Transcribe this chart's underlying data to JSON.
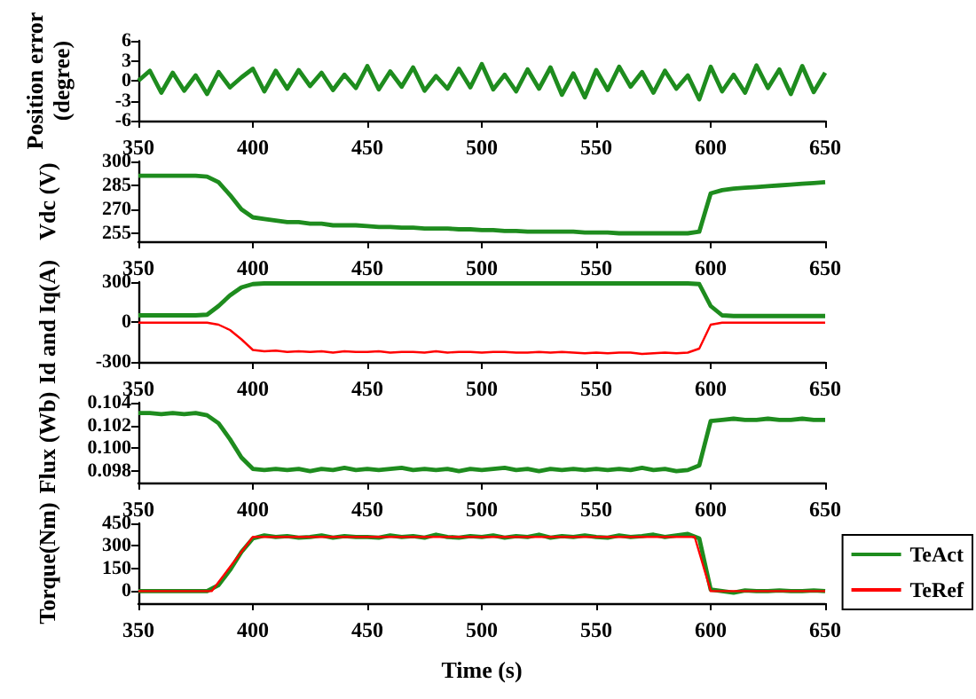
{
  "chart_data": [
    {
      "type": "line",
      "ylabel": "Position error (degree)",
      "xlim": [
        350,
        650
      ],
      "xticks": [
        350,
        400,
        450,
        500,
        550,
        600,
        650
      ],
      "ylim": [
        -6,
        6
      ],
      "yticks": [
        -6,
        -3,
        0,
        3,
        6
      ],
      "x": [
        350,
        355,
        360,
        365,
        370,
        375,
        380,
        385,
        390,
        395,
        400,
        405,
        410,
        415,
        420,
        425,
        430,
        435,
        440,
        445,
        450,
        455,
        460,
        465,
        470,
        475,
        480,
        485,
        490,
        495,
        500,
        505,
        510,
        515,
        520,
        525,
        530,
        535,
        540,
        545,
        550,
        555,
        560,
        565,
        570,
        575,
        580,
        585,
        590,
        595,
        600,
        605,
        610,
        615,
        620,
        625,
        630,
        635,
        640,
        645,
        650
      ],
      "series": [
        {
          "color": "#1e8c1e",
          "values": [
            0,
            1.5,
            -1.8,
            1.2,
            -1.5,
            0.8,
            -2,
            1.3,
            -1,
            0.5,
            1.8,
            -1.6,
            1.5,
            -1.2,
            1.6,
            -0.8,
            1.2,
            -1.4,
            0.9,
            -1.1,
            2.2,
            -1.3,
            1.4,
            -0.9,
            2,
            -1.5,
            0.7,
            -1.2,
            1.8,
            -1,
            2.5,
            -1.3,
            0.9,
            -1.6,
            1.7,
            -1.2,
            2,
            -2.1,
            1.1,
            -2.5,
            1.6,
            -1.4,
            2.1,
            -0.9,
            1.3,
            -1.8,
            1.5,
            -1.2,
            0.8,
            -2.8,
            2.1,
            -1.6,
            0.9,
            -1.8,
            2.3,
            -1.1,
            1.7,
            -2,
            2.2,
            -1.7,
            1.2
          ]
        }
      ]
    },
    {
      "type": "line",
      "ylabel": "Vdc (V)",
      "xlim": [
        350,
        650
      ],
      "xticks": [
        350,
        400,
        450,
        500,
        550,
        600,
        650
      ],
      "ylim": [
        250,
        300
      ],
      "yticks": [
        255,
        270,
        285,
        300
      ],
      "x": [
        350,
        355,
        360,
        365,
        370,
        375,
        380,
        385,
        390,
        395,
        400,
        405,
        410,
        415,
        420,
        425,
        430,
        435,
        440,
        445,
        450,
        455,
        460,
        465,
        470,
        475,
        480,
        485,
        490,
        495,
        500,
        505,
        510,
        515,
        520,
        525,
        530,
        535,
        540,
        545,
        550,
        555,
        560,
        565,
        570,
        575,
        580,
        585,
        590,
        595,
        600,
        605,
        610,
        615,
        620,
        625,
        630,
        635,
        640,
        645,
        650
      ],
      "series": [
        {
          "color": "#1e8c1e",
          "values": [
            291,
            291,
            291,
            291,
            291,
            291,
            290.5,
            287,
            279,
            270,
            265,
            264,
            263,
            262,
            262,
            261,
            261,
            260,
            260,
            260,
            259.5,
            259,
            259,
            258.5,
            258.5,
            258,
            258,
            258,
            257.5,
            257.5,
            257,
            257,
            256.5,
            256.5,
            256,
            256,
            256,
            256,
            256,
            255.5,
            255.5,
            255.5,
            255,
            255,
            255,
            255,
            255,
            255,
            255,
            256,
            280,
            282,
            283,
            283.5,
            284,
            284.5,
            285,
            285.5,
            286,
            286.5,
            287
          ]
        }
      ]
    },
    {
      "type": "line",
      "ylabel": "Id and Iq(A)",
      "xlim": [
        350,
        650
      ],
      "xticks": [
        350,
        400,
        450,
        500,
        550,
        600,
        650
      ],
      "ylim": [
        -300,
        300
      ],
      "yticks": [
        -300,
        0,
        300
      ],
      "x": [
        350,
        355,
        360,
        365,
        370,
        375,
        380,
        385,
        390,
        395,
        400,
        405,
        410,
        415,
        420,
        425,
        430,
        435,
        440,
        445,
        450,
        455,
        460,
        465,
        470,
        475,
        480,
        485,
        490,
        495,
        500,
        505,
        510,
        515,
        520,
        525,
        530,
        535,
        540,
        545,
        550,
        555,
        560,
        565,
        570,
        575,
        580,
        585,
        590,
        595,
        600,
        605,
        610,
        615,
        620,
        625,
        630,
        635,
        640,
        645,
        650
      ],
      "series": [
        {
          "color": "#1e8c1e",
          "values": [
            50,
            50,
            50,
            50,
            50,
            50,
            55,
            120,
            200,
            260,
            285,
            290,
            290,
            290,
            290,
            290,
            290,
            290,
            290,
            290,
            290,
            290,
            290,
            290,
            290,
            290,
            290,
            290,
            290,
            290,
            290,
            290,
            290,
            290,
            290,
            290,
            290,
            290,
            290,
            290,
            290,
            290,
            290,
            290,
            290,
            290,
            290,
            290,
            290,
            285,
            120,
            50,
            45,
            45,
            45,
            45,
            45,
            45,
            45,
            45,
            45
          ]
        },
        {
          "color": "#ff0000",
          "values": [
            -5,
            -5,
            -5,
            -5,
            -5,
            -5,
            -5,
            -20,
            -60,
            -130,
            -210,
            -220,
            -215,
            -225,
            -220,
            -225,
            -220,
            -230,
            -220,
            -225,
            -225,
            -220,
            -230,
            -225,
            -225,
            -230,
            -220,
            -230,
            -225,
            -225,
            -230,
            -225,
            -225,
            -230,
            -230,
            -225,
            -230,
            -225,
            -230,
            -235,
            -230,
            -235,
            -230,
            -230,
            -240,
            -235,
            -230,
            -235,
            -230,
            -200,
            -20,
            -5,
            -5,
            -5,
            -5,
            -5,
            -5,
            -5,
            -5,
            -5,
            -5
          ]
        }
      ]
    },
    {
      "type": "line",
      "ylabel": "Flux (Wb)",
      "xlim": [
        350,
        650
      ],
      "xticks": [
        350,
        400,
        450,
        500,
        550,
        600,
        650
      ],
      "ylim": [
        0.097,
        0.104
      ],
      "yticks": [
        0.098,
        {
          "value": 0.1,
          "label": "0.100"
        },
        0.102,
        0.104
      ],
      "x": [
        350,
        355,
        360,
        365,
        370,
        375,
        380,
        385,
        390,
        395,
        400,
        405,
        410,
        415,
        420,
        425,
        430,
        435,
        440,
        445,
        450,
        455,
        460,
        465,
        470,
        475,
        480,
        485,
        490,
        495,
        500,
        505,
        510,
        515,
        520,
        525,
        530,
        535,
        540,
        545,
        550,
        555,
        560,
        565,
        570,
        575,
        580,
        585,
        590,
        595,
        600,
        605,
        610,
        615,
        620,
        625,
        630,
        635,
        640,
        645,
        650
      ],
      "series": [
        {
          "color": "#1e8c1e",
          "values": [
            0.1031,
            0.1031,
            0.103,
            0.1031,
            0.103,
            0.1031,
            0.1029,
            0.1022,
            0.1008,
            0.0992,
            0.0982,
            0.0981,
            0.0982,
            0.0981,
            0.0982,
            0.098,
            0.0982,
            0.0981,
            0.0983,
            0.0981,
            0.0982,
            0.0981,
            0.0982,
            0.0983,
            0.0981,
            0.0982,
            0.0981,
            0.0982,
            0.098,
            0.0982,
            0.0981,
            0.0982,
            0.0983,
            0.0981,
            0.0982,
            0.098,
            0.0982,
            0.0981,
            0.0982,
            0.0981,
            0.0982,
            0.0981,
            0.0982,
            0.0981,
            0.0983,
            0.0981,
            0.0982,
            0.098,
            0.0981,
            0.0985,
            0.1024,
            0.1025,
            0.1026,
            0.1025,
            0.1025,
            0.1026,
            0.1025,
            0.1025,
            0.1026,
            0.1025,
            0.1025
          ]
        }
      ]
    },
    {
      "type": "line",
      "ylabel": "Torque(Nm)",
      "xlabel": "Time (s)",
      "legend": "right",
      "xlim": [
        350,
        650
      ],
      "xticks": [
        350,
        400,
        450,
        500,
        550,
        600,
        650
      ],
      "ylim": [
        -80,
        450
      ],
      "yticks": [
        0,
        150,
        300,
        450
      ],
      "x": [
        350,
        355,
        360,
        365,
        370,
        375,
        380,
        385,
        390,
        395,
        400,
        405,
        410,
        415,
        420,
        425,
        430,
        435,
        440,
        445,
        450,
        455,
        460,
        465,
        470,
        475,
        480,
        485,
        490,
        495,
        500,
        505,
        510,
        515,
        520,
        525,
        530,
        535,
        540,
        545,
        550,
        555,
        560,
        565,
        570,
        575,
        580,
        585,
        590,
        595,
        600,
        605,
        610,
        615,
        620,
        625,
        630,
        635,
        640,
        645,
        650
      ],
      "series": [
        {
          "name": "TeAct",
          "color": "#1e8c1e",
          "values": [
            0,
            0,
            0,
            0,
            0,
            0,
            0,
            40,
            140,
            260,
            350,
            370,
            360,
            365,
            355,
            360,
            370,
            355,
            365,
            360,
            360,
            355,
            370,
            360,
            365,
            355,
            375,
            360,
            355,
            365,
            360,
            370,
            355,
            365,
            360,
            375,
            355,
            365,
            360,
            370,
            360,
            355,
            370,
            360,
            365,
            375,
            360,
            370,
            380,
            350,
            10,
            0,
            -10,
            5,
            0,
            0,
            5,
            0,
            0,
            5,
            0
          ]
        },
        {
          "name": "TeRef",
          "color": "#ff0000",
          "x": [
            350,
            382,
            400,
            593,
            600,
            650
          ],
          "values": [
            0,
            0,
            360,
            360,
            0,
            0
          ]
        }
      ]
    }
  ]
}
